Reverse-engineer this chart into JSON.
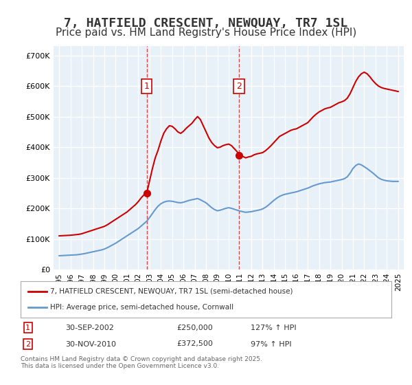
{
  "title": "7, HATFIELD CRESCENT, NEWQUAY, TR7 1SL",
  "subtitle": "Price paid vs. HM Land Registry's House Price Index (HPI)",
  "title_fontsize": 13,
  "subtitle_fontsize": 11,
  "background_color": "#ffffff",
  "plot_bg_color": "#e8f0f8",
  "grid_color": "#ffffff",
  "red_color": "#cc0000",
  "blue_color": "#6699cc",
  "sale1_year": 2002.75,
  "sale1_price": 250000,
  "sale2_year": 2010.917,
  "sale2_price": 372500,
  "ylim": [
    0,
    730000
  ],
  "xlim_start": 1994.5,
  "xlim_end": 2025.5,
  "yticks": [
    0,
    100000,
    200000,
    300000,
    400000,
    500000,
    600000,
    700000
  ],
  "xtick_years": [
    1995,
    1996,
    1997,
    1998,
    1999,
    2000,
    2001,
    2002,
    2003,
    2004,
    2005,
    2006,
    2007,
    2008,
    2009,
    2010,
    2011,
    2012,
    2013,
    2014,
    2015,
    2016,
    2017,
    2018,
    2019,
    2020,
    2021,
    2022,
    2023,
    2024,
    2025
  ],
  "legend_label_red": "7, HATFIELD CRESCENT, NEWQUAY, TR7 1SL (semi-detached house)",
  "legend_label_blue": "HPI: Average price, semi-detached house, Cornwall",
  "footnote": "Contains HM Land Registry data © Crown copyright and database right 2025.\nThis data is licensed under the Open Government Licence v3.0.",
  "table_rows": [
    {
      "num": "1",
      "date": "30-SEP-2002",
      "price": "£250,000",
      "hpi": "127% ↑ HPI"
    },
    {
      "num": "2",
      "date": "30-NOV-2010",
      "price": "£372,500",
      "hpi": "97% ↑ HPI"
    }
  ],
  "red_line_data": {
    "years": [
      1995.0,
      1995.25,
      1995.5,
      1995.75,
      1996.0,
      1996.25,
      1996.5,
      1996.75,
      1997.0,
      1997.25,
      1997.5,
      1997.75,
      1998.0,
      1998.25,
      1998.5,
      1998.75,
      1999.0,
      1999.25,
      1999.5,
      1999.75,
      2000.0,
      2000.25,
      2000.5,
      2000.75,
      2001.0,
      2001.25,
      2001.5,
      2001.75,
      2002.0,
      2002.25,
      2002.5,
      2002.75,
      2003.0,
      2003.25,
      2003.5,
      2003.75,
      2004.0,
      2004.25,
      2004.5,
      2004.75,
      2005.0,
      2005.25,
      2005.5,
      2005.75,
      2006.0,
      2006.25,
      2006.5,
      2006.75,
      2007.0,
      2007.25,
      2007.5,
      2007.75,
      2008.0,
      2008.25,
      2008.5,
      2008.75,
      2009.0,
      2009.25,
      2009.5,
      2009.75,
      2010.0,
      2010.25,
      2010.5,
      2010.75,
      2011.0,
      2011.25,
      2011.5,
      2011.75,
      2012.0,
      2012.25,
      2012.5,
      2012.75,
      2013.0,
      2013.25,
      2013.5,
      2013.75,
      2014.0,
      2014.25,
      2014.5,
      2014.75,
      2015.0,
      2015.25,
      2015.5,
      2015.75,
      2016.0,
      2016.25,
      2016.5,
      2016.75,
      2017.0,
      2017.25,
      2017.5,
      2017.75,
      2018.0,
      2018.25,
      2018.5,
      2018.75,
      2019.0,
      2019.25,
      2019.5,
      2019.75,
      2020.0,
      2020.25,
      2020.5,
      2020.75,
      2021.0,
      2021.25,
      2021.5,
      2021.75,
      2022.0,
      2022.25,
      2022.5,
      2022.75,
      2023.0,
      2023.25,
      2023.5,
      2023.75,
      2024.0,
      2024.25,
      2024.5,
      2024.75,
      2025.0
    ],
    "prices": [
      110000,
      110500,
      111000,
      111500,
      112000,
      113000,
      114000,
      115000,
      117000,
      120000,
      123000,
      126000,
      129000,
      132000,
      135000,
      138000,
      141000,
      146000,
      152000,
      158000,
      164000,
      170000,
      176000,
      182000,
      188000,
      196000,
      204000,
      212000,
      222000,
      234000,
      244000,
      250000,
      290000,
      330000,
      365000,
      390000,
      420000,
      445000,
      460000,
      470000,
      468000,
      460000,
      450000,
      445000,
      452000,
      462000,
      470000,
      478000,
      490000,
      500000,
      490000,
      470000,
      450000,
      430000,
      415000,
      405000,
      398000,
      400000,
      405000,
      408000,
      410000,
      405000,
      395000,
      385000,
      372500,
      370000,
      365000,
      368000,
      370000,
      375000,
      378000,
      380000,
      382000,
      388000,
      396000,
      405000,
      415000,
      425000,
      435000,
      440000,
      445000,
      450000,
      455000,
      458000,
      460000,
      465000,
      470000,
      475000,
      480000,
      490000,
      500000,
      508000,
      515000,
      520000,
      525000,
      528000,
      530000,
      535000,
      540000,
      545000,
      548000,
      552000,
      560000,
      575000,
      595000,
      615000,
      630000,
      640000,
      645000,
      640000,
      630000,
      618000,
      608000,
      600000,
      595000,
      592000,
      590000,
      588000,
      586000,
      584000,
      582000
    ]
  },
  "blue_line_data": {
    "years": [
      1995.0,
      1995.25,
      1995.5,
      1995.75,
      1996.0,
      1996.25,
      1996.5,
      1996.75,
      1997.0,
      1997.25,
      1997.5,
      1997.75,
      1998.0,
      1998.25,
      1998.5,
      1998.75,
      1999.0,
      1999.25,
      1999.5,
      1999.75,
      2000.0,
      2000.25,
      2000.5,
      2000.75,
      2001.0,
      2001.25,
      2001.5,
      2001.75,
      2002.0,
      2002.25,
      2002.5,
      2002.75,
      2003.0,
      2003.25,
      2003.5,
      2003.75,
      2004.0,
      2004.25,
      2004.5,
      2004.75,
      2005.0,
      2005.25,
      2005.5,
      2005.75,
      2006.0,
      2006.25,
      2006.5,
      2006.75,
      2007.0,
      2007.25,
      2007.5,
      2007.75,
      2008.0,
      2008.25,
      2008.5,
      2008.75,
      2009.0,
      2009.25,
      2009.5,
      2009.75,
      2010.0,
      2010.25,
      2010.5,
      2010.75,
      2011.0,
      2011.25,
      2011.5,
      2011.75,
      2012.0,
      2012.25,
      2012.5,
      2012.75,
      2013.0,
      2013.25,
      2013.5,
      2013.75,
      2014.0,
      2014.25,
      2014.5,
      2014.75,
      2015.0,
      2015.25,
      2015.5,
      2015.75,
      2016.0,
      2016.25,
      2016.5,
      2016.75,
      2017.0,
      2017.25,
      2017.5,
      2017.75,
      2018.0,
      2018.25,
      2018.5,
      2018.75,
      2019.0,
      2019.25,
      2019.5,
      2019.75,
      2020.0,
      2020.25,
      2020.5,
      2020.75,
      2021.0,
      2021.25,
      2021.5,
      2021.75,
      2022.0,
      2022.25,
      2022.5,
      2022.75,
      2023.0,
      2023.25,
      2023.5,
      2023.75,
      2024.0,
      2024.25,
      2024.5,
      2024.75,
      2025.0
    ],
    "prices": [
      45000,
      45500,
      46000,
      46500,
      47000,
      47500,
      48000,
      49000,
      50500,
      52000,
      54000,
      56000,
      58000,
      60000,
      62000,
      64000,
      67000,
      71000,
      76000,
      81000,
      86000,
      92000,
      98000,
      104000,
      110000,
      116000,
      122000,
      128000,
      134000,
      142000,
      150000,
      158000,
      170000,
      183000,
      196000,
      207000,
      215000,
      220000,
      223000,
      224000,
      223000,
      221000,
      219000,
      218000,
      220000,
      223000,
      226000,
      228000,
      230000,
      232000,
      228000,
      223000,
      218000,
      210000,
      202000,
      196000,
      192000,
      194000,
      197000,
      200000,
      202000,
      200000,
      197000,
      194000,
      191000,
      189000,
      187000,
      188000,
      189000,
      191000,
      193000,
      195000,
      198000,
      203000,
      210000,
      218000,
      226000,
      233000,
      239000,
      243000,
      246000,
      248000,
      250000,
      252000,
      254000,
      257000,
      260000,
      263000,
      266000,
      270000,
      274000,
      277000,
      280000,
      282000,
      284000,
      285000,
      286000,
      288000,
      290000,
      292000,
      294000,
      297000,
      303000,
      315000,
      330000,
      340000,
      345000,
      342000,
      336000,
      330000,
      323000,
      316000,
      308000,
      300000,
      295000,
      292000,
      290000,
      289000,
      288000,
      288000,
      288000
    ]
  }
}
